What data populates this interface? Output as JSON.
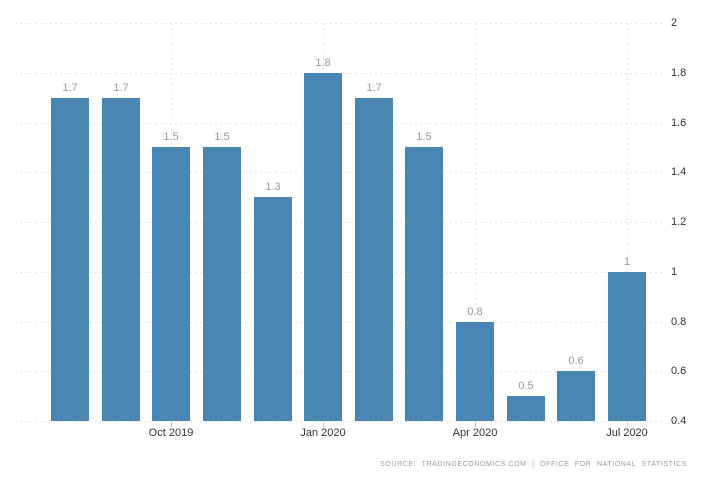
{
  "chart_data": {
    "type": "bar",
    "title": "",
    "values": [
      1.7,
      1.7,
      1.5,
      1.5,
      1.3,
      1.8,
      1.7,
      1.5,
      0.8,
      0.5,
      0.6,
      1
    ],
    "bar_labels": [
      "1.7",
      "1.7",
      "1.5",
      "1.5",
      "1.3",
      "1.8",
      "1.7",
      "1.5",
      "0.8",
      "0.5",
      "0.6",
      "1"
    ],
    "x_ticks": [
      {
        "label": "Oct 2019",
        "bar_index": 2
      },
      {
        "label": "Jan 2020",
        "bar_index": 5
      },
      {
        "label": "Apr 2020",
        "bar_index": 8
      },
      {
        "label": "Jul 2020",
        "bar_index": 11
      }
    ],
    "y_ticks": [
      {
        "label": "2",
        "value": 2
      },
      {
        "label": "1.8",
        "value": 1.8
      },
      {
        "label": "1.6",
        "value": 1.6
      },
      {
        "label": "1.4",
        "value": 1.4
      },
      {
        "label": "1.2",
        "value": 1.2
      },
      {
        "label": "1",
        "value": 1
      },
      {
        "label": "0.8",
        "value": 0.8
      },
      {
        "label": "0.6",
        "value": 0.6
      },
      {
        "label": "0.4",
        "value": 0.4
      }
    ],
    "ylim": [
      0.4,
      2
    ],
    "grid": "dotted",
    "legend": "none",
    "y_axis_side": "right",
    "bar_color": "#4a86b4"
  },
  "source_note": "SOURCE: TRADINGECONOMICS.COM | OFFICE FOR NATIONAL STATISTICS",
  "colors": {
    "background": "#ffffff",
    "bar": "#4a86b4",
    "grid": "#e7e7e7",
    "tick": "#cccccc",
    "bar_value_label": "#999999",
    "axis_label": "#333333",
    "source_text": "#9b9b9b"
  }
}
